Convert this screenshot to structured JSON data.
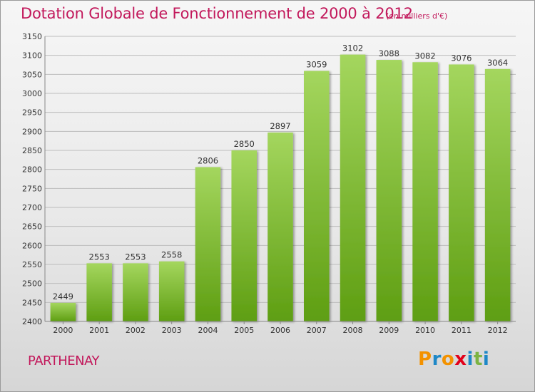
{
  "title": "Dotation Globale de Fonctionnement de 2000 à 2012",
  "subtitle": "(en milliers d'€)",
  "city": "PARTHENAY",
  "brand": {
    "name": "Proxiti",
    "letters": [
      "P",
      "r",
      "o",
      "x",
      "i",
      "t",
      "i"
    ],
    "colors": [
      "#f39200",
      "#1e88c7",
      "#f39200",
      "#e2001a",
      "#1e88c7",
      "#7cb342",
      "#1e88c7"
    ]
  },
  "colors": {
    "accent": "#c2185b",
    "bar_top": "#a4d65e",
    "bar_bottom": "#5e9e12",
    "grid": "#bdbdbd"
  },
  "chart_data": {
    "type": "bar",
    "categories": [
      "2000",
      "2001",
      "2002",
      "2003",
      "2004",
      "2005",
      "2006",
      "2007",
      "2008",
      "2009",
      "2010",
      "2011",
      "2012"
    ],
    "values": [
      2449,
      2553,
      2553,
      2558,
      2806,
      2850,
      2897,
      3059,
      3102,
      3088,
      3082,
      3076,
      3064
    ],
    "ylim": [
      2400,
      3150
    ],
    "yticks": [
      2400,
      2450,
      2500,
      2550,
      2600,
      2650,
      2700,
      2750,
      2800,
      2850,
      2900,
      2950,
      3000,
      3050,
      3100,
      3150
    ],
    "grid": true,
    "legend": "none"
  }
}
